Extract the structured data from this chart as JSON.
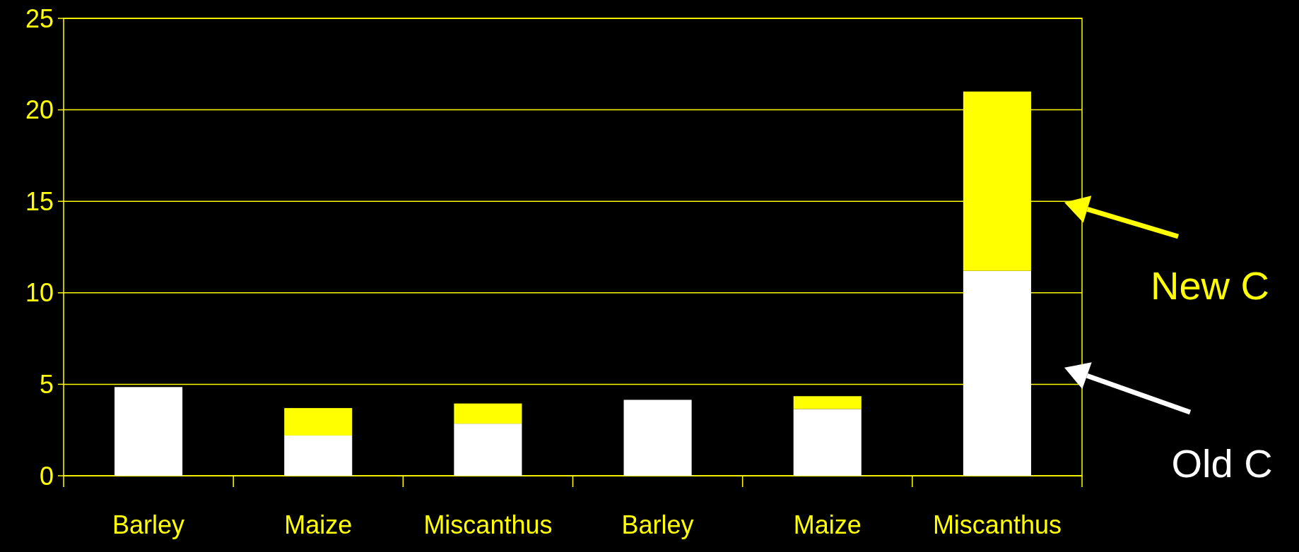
{
  "chart_data": {
    "type": "bar",
    "stacked": true,
    "categories": [
      "Barley",
      "Maize",
      "Miscanthus",
      "Barley",
      "Maize",
      "Miscanthus"
    ],
    "series": [
      {
        "name": "Old C",
        "color": "#ffffff",
        "values": [
          4.85,
          2.2,
          2.85,
          4.15,
          3.65,
          11.2
        ]
      },
      {
        "name": "New C",
        "color": "#ffff00",
        "values": [
          0,
          1.5,
          1.1,
          0,
          0.7,
          9.8
        ]
      }
    ],
    "ylim": [
      0,
      25
    ],
    "yticks": [
      0,
      5,
      10,
      15,
      20,
      25
    ],
    "grid": "y",
    "legend": "right"
  }
}
